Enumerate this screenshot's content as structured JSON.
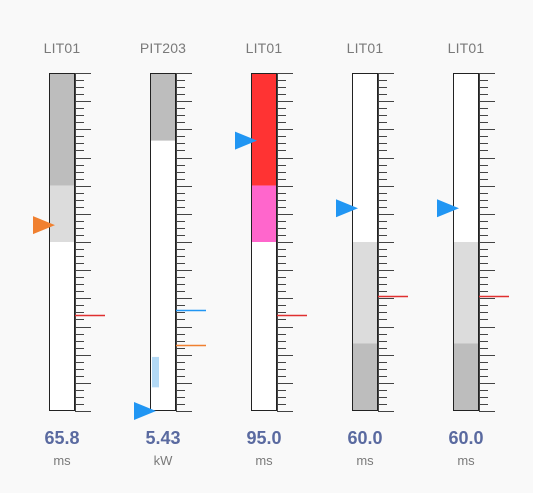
{
  "colors": {
    "bar_border": "#222222",
    "tick": "#444444",
    "track_bg": "#ffffff",
    "value_text": "#5a6aa0",
    "label_text": "#7a7a7a"
  },
  "gauges": [
    {
      "tag": "LIT01",
      "value": "65.8",
      "unit": "ms",
      "pointer": {
        "color": "#f08030",
        "level": 0.55
      },
      "segments": [
        {
          "from": 1.0,
          "to": 0.667,
          "color": "#bdbdbd"
        },
        {
          "from": 0.667,
          "to": 0.5,
          "color": "#dcdcdc"
        }
      ],
      "markers": [
        {
          "level": 0.283,
          "color": "#e03030"
        }
      ]
    },
    {
      "tag": "PIT203",
      "value": "5.43",
      "unit": "kW",
      "pointer": {
        "color": "#2196f3",
        "level": 0.0
      },
      "segments": [
        {
          "from": 1.0,
          "to": 0.8,
          "color": "#bdbdbd"
        },
        {
          "from": 0.16,
          "to": 0.07,
          "color": "#b3d9f5",
          "inset": true
        }
      ],
      "markers": [
        {
          "level": 0.3,
          "color": "#2196f3"
        },
        {
          "level": 0.195,
          "color": "#f08030"
        }
      ]
    },
    {
      "tag": "LIT01",
      "value": "95.0",
      "unit": "ms",
      "pointer": {
        "color": "#2196f3",
        "level": 0.8
      },
      "segments": [
        {
          "from": 1.0,
          "to": 0.667,
          "color": "#ff3333"
        },
        {
          "from": 0.667,
          "to": 0.5,
          "color": "#ff66cc"
        }
      ],
      "markers": [
        {
          "level": 0.283,
          "color": "#e03030"
        }
      ]
    },
    {
      "tag": "LIT01",
      "value": "60.0",
      "unit": "ms",
      "pointer": {
        "color": "#2196f3",
        "level": 0.6
      },
      "segments": [
        {
          "from": 0.5,
          "to": 0.2,
          "color": "#dcdcdc"
        },
        {
          "from": 0.2,
          "to": 0.0,
          "color": "#bdbdbd"
        }
      ],
      "markers": [
        {
          "level": 0.34,
          "color": "#e03030"
        }
      ]
    },
    {
      "tag": "LIT01",
      "value": "60.0",
      "unit": "ms",
      "pointer": {
        "color": "#2196f3",
        "level": 0.6
      },
      "segments": [
        {
          "from": 0.5,
          "to": 0.2,
          "color": "#dcdcdc"
        },
        {
          "from": 0.2,
          "to": 0.0,
          "color": "#bdbdbd"
        }
      ],
      "markers": [
        {
          "level": 0.34,
          "color": "#e03030"
        }
      ]
    }
  ]
}
